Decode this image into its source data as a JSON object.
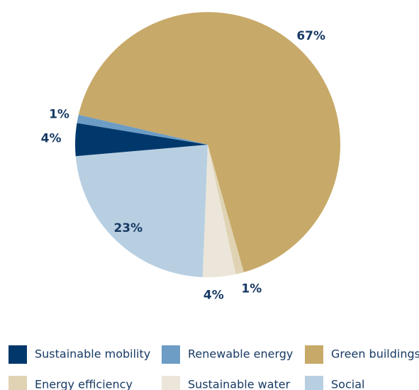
{
  "chart_data": {
    "type": "pie",
    "title": "",
    "slices": [
      {
        "name": "Green buildings",
        "value": 67,
        "label": "67%",
        "color": "#c7a969"
      },
      {
        "name": "Energy efficiency",
        "value": 1,
        "label": "1%",
        "color": "#e0d3b3"
      },
      {
        "name": "Sustainable water",
        "value": 4,
        "label": "4%",
        "color": "#ebe6d9"
      },
      {
        "name": "Social",
        "value": 23,
        "label": "23%",
        "color": "#b8cfe2"
      },
      {
        "name": "Sustainable mobility",
        "value": 4,
        "label": "4%",
        "color": "#00386b"
      },
      {
        "name": "Renewable energy",
        "value": 1,
        "label": "1%",
        "color": "#6d9cc4"
      }
    ],
    "legend": {
      "placement": "bottom",
      "items": [
        "Sustainable mobility",
        "Renewable energy",
        "Green buildings",
        "Energy efficiency",
        "Sustainable water",
        "Social"
      ]
    }
  }
}
